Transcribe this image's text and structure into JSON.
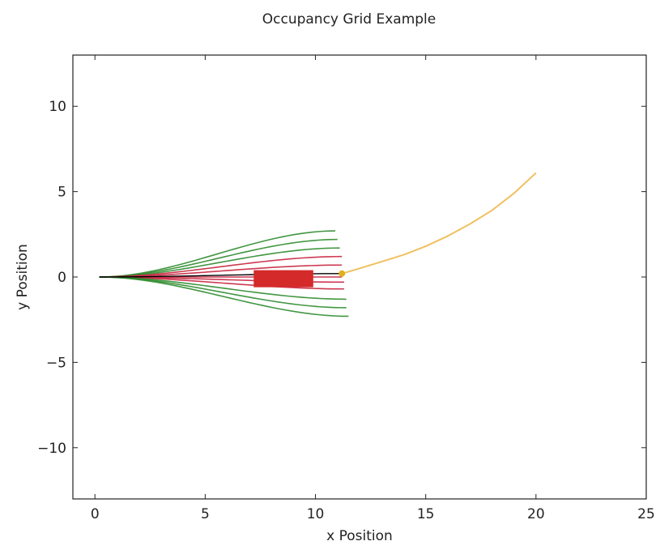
{
  "chart_data": {
    "type": "line",
    "title": "Occupancy Grid Example",
    "xlabel": "x Position",
    "ylabel": "y Position",
    "xlim": [
      -1,
      25
    ],
    "ylim": [
      -13,
      13
    ],
    "xticks": [
      0,
      5,
      10,
      15,
      20,
      25
    ],
    "yticks": [
      -10,
      -5,
      0,
      5,
      10
    ],
    "xtick_labels": [
      "0",
      "5",
      "10",
      "15",
      "20",
      "25"
    ],
    "ytick_labels": [
      "−10",
      "−5",
      "0",
      "5",
      "10"
    ],
    "grid": false,
    "colors": {
      "collision_free_path": "#2e8b2e",
      "colliding_path": "#c8233f",
      "best_path": "#000000",
      "obstacle": "#d42a2a",
      "goal_path": "#f0c060",
      "goal_point": "#e0b020",
      "axes_frame": "#222222"
    },
    "paths": {
      "start": [
        0.2,
        0
      ],
      "sampled_endpoints": [
        {
          "end": [
            10.9,
            2.7
          ],
          "status": "free"
        },
        {
          "end": [
            11.0,
            2.2
          ],
          "status": "free"
        },
        {
          "end": [
            11.1,
            1.7
          ],
          "status": "free"
        },
        {
          "end": [
            11.2,
            1.2
          ],
          "status": "collision"
        },
        {
          "end": [
            11.2,
            0.7
          ],
          "status": "collision"
        },
        {
          "end": [
            11.2,
            0.0
          ],
          "status": "collision"
        },
        {
          "end": [
            11.3,
            -0.3
          ],
          "status": "collision"
        },
        {
          "end": [
            11.3,
            -0.7
          ],
          "status": "collision"
        },
        {
          "end": [
            11.4,
            -1.3
          ],
          "status": "free"
        },
        {
          "end": [
            11.4,
            -1.8
          ],
          "status": "free"
        },
        {
          "end": [
            11.5,
            -2.3
          ],
          "status": "free"
        }
      ],
      "best_path_end": [
        11.2,
        0.2
      ]
    },
    "obstacle": {
      "x_min": 7.2,
      "x_max": 9.9,
      "y_min": -0.6,
      "y_max": 0.4
    },
    "goal_path": {
      "x": [
        11.2,
        12,
        13,
        14,
        15,
        16,
        17,
        18,
        19,
        20
      ],
      "y": [
        0.2,
        0.5,
        0.9,
        1.3,
        1.8,
        2.4,
        3.1,
        3.9,
        4.9,
        6.1
      ]
    },
    "goal_point": [
      11.2,
      0.2
    ]
  }
}
